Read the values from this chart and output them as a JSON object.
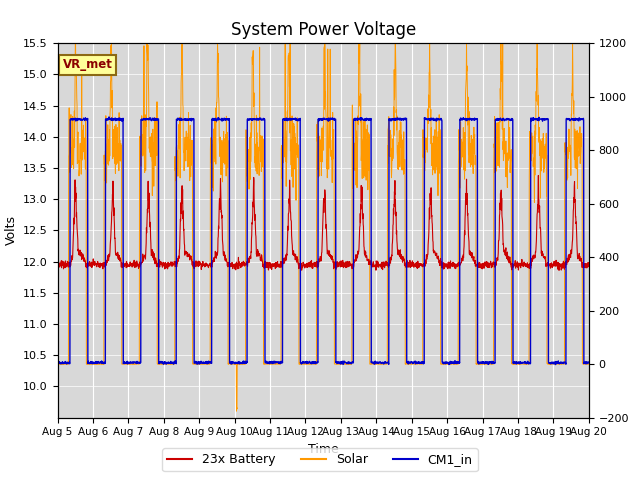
{
  "title": "System Power Voltage",
  "xlabel": "Time",
  "ylabel_left": "Volts",
  "ylabel_right": "",
  "ylim_left": [
    9.5,
    15.5
  ],
  "ylim_right": [
    -200,
    1200
  ],
  "yticks_left": [
    10.0,
    10.5,
    11.0,
    11.5,
    12.0,
    12.5,
    13.0,
    13.5,
    14.0,
    14.5,
    15.0,
    15.5
  ],
  "yticks_right": [
    -200,
    0,
    200,
    400,
    600,
    800,
    1000,
    1200
  ],
  "xtick_labels": [
    "Aug 5",
    "Aug 6",
    "Aug 7",
    "Aug 8",
    "Aug 9",
    "Aug 10",
    "Aug 11",
    "Aug 12",
    "Aug 13",
    "Aug 14",
    "Aug 15",
    "Aug 16",
    "Aug 17",
    "Aug 18",
    "Aug 19",
    "Aug 20"
  ],
  "color_battery": "#cc0000",
  "color_solar": "#ff9900",
  "color_cm1": "#0000cc",
  "legend_labels": [
    "23x Battery",
    "Solar",
    "CM1_in"
  ],
  "vr_met_label": "VR_met",
  "bg_color": "#d8d8d8",
  "fig_bg_color": "#ffffff",
  "title_fontsize": 12,
  "axis_fontsize": 9,
  "tick_fontsize": 8
}
